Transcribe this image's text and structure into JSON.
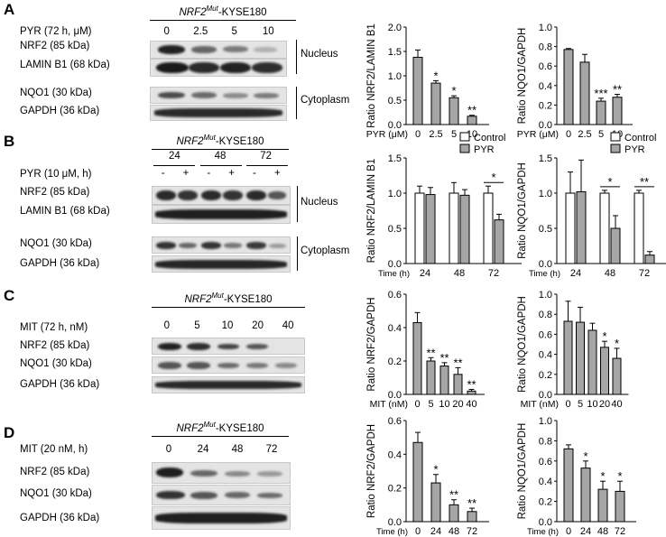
{
  "panels": [
    {
      "letter": "A",
      "title_gene": "NRF2",
      "title_sup": "Mut",
      "title_rest": "-KYSE180",
      "treatment": "PYR (72 h, μM)",
      "lanes": [
        "0",
        "2.5",
        "5",
        "10"
      ],
      "rows": [
        "NRF2 (85 kDa)",
        "LAMIN B1 (68 kDa)",
        "NQO1 (30 kDa)",
        "GAPDH (36 kDa)"
      ],
      "brackets": [
        "Nucleus",
        "Cytoplasm"
      ]
    },
    {
      "letter": "B",
      "title_gene": "NRF2",
      "title_sup": "Mut",
      "title_rest": "-KYSE180",
      "treatment": "PYR (10 μM, h)",
      "groups": [
        "24",
        "48",
        "72"
      ],
      "lanes": [
        "-",
        "+",
        "-",
        "+",
        "-",
        "+"
      ],
      "rows": [
        "NRF2 (85 kDa)",
        "LAMIN B1 (68 kDa)",
        "NQO1 (30 kDa)",
        "GAPDH (36 kDa)"
      ],
      "brackets": [
        "Nucleus",
        "Cytoplasm"
      ]
    },
    {
      "letter": "C",
      "title_gene": "NRF2",
      "title_sup": "Mut",
      "title_rest": "-KYSE180",
      "treatment": "MIT (72 h, nM)",
      "lanes": [
        "0",
        "5",
        "10",
        "20",
        "40"
      ],
      "rows": [
        "NRF2 (85 kDa)",
        "NQO1 (30 kDa)",
        "GAPDH (36 kDa)"
      ]
    },
    {
      "letter": "D",
      "title_gene": "NRF2",
      "title_sup": "Mut",
      "title_rest": "-KYSE180",
      "treatment": "MIT (20 nM, h)",
      "lanes": [
        "0",
        "24",
        "48",
        "72"
      ],
      "rows": [
        "NRF2 (85 kDa)",
        "NQO1 (30 kDa)",
        "GAPDH (36 kDa)"
      ]
    }
  ],
  "chart_data": [
    {
      "id": "A1",
      "type": "bar",
      "xlabel": "PYR (μM)",
      "ylabel": "Ratio NRF2/LAMIN B1",
      "categories": [
        "0",
        "2.5",
        "5",
        "10"
      ],
      "values": [
        1.38,
        0.85,
        0.55,
        0.17
      ],
      "errors": [
        0.15,
        0.05,
        0.04,
        0.02
      ],
      "ylim": [
        0,
        2.0
      ],
      "yticks": [
        "0.0",
        "0.5",
        "1.0",
        "1.5",
        "2.0"
      ],
      "yticks_v": [
        0,
        0.5,
        1.0,
        1.5,
        2.0
      ],
      "sig": [
        "",
        "*",
        "*",
        "**"
      ],
      "bar_color": "#a6a6a6"
    },
    {
      "id": "A2",
      "type": "bar",
      "xlabel": "PYR (μM)",
      "ylabel": "Ratio NQO1/GAPDH",
      "categories": [
        "0",
        "2.5",
        "5",
        "10"
      ],
      "values": [
        0.77,
        0.64,
        0.24,
        0.28
      ],
      "errors": [
        0.01,
        0.08,
        0.03,
        0.03
      ],
      "ylim": [
        0,
        1.0
      ],
      "yticks": [
        "0.0",
        "0.2",
        "0.4",
        "0.6",
        "0.8",
        "1.0"
      ],
      "yticks_v": [
        0,
        0.2,
        0.4,
        0.6,
        0.8,
        1.0
      ],
      "sig": [
        "",
        "",
        "***",
        "**"
      ],
      "bar_color": "#a6a6a6"
    },
    {
      "id": "B1",
      "type": "bar",
      "xlabel": "Time (h)",
      "ylabel": "Ratio NRF2/LAMIN B1",
      "categories": [
        "24",
        "48",
        "72"
      ],
      "series": [
        {
          "name": "Control",
          "values": [
            1.0,
            1.0,
            1.0
          ],
          "errors": [
            0.1,
            0.15,
            0.1
          ],
          "color": "#ffffff"
        },
        {
          "name": "PYR",
          "values": [
            0.98,
            0.97,
            0.62
          ],
          "errors": [
            0.1,
            0.08,
            0.08
          ],
          "color": "#a6a6a6"
        }
      ],
      "ylim": [
        0,
        1.5
      ],
      "yticks": [
        "0.0",
        "0.5",
        "1.0",
        "1.5"
      ],
      "yticks_v": [
        0,
        0.5,
        1.0,
        1.5
      ],
      "sig": [
        "",
        "",
        "*"
      ],
      "legend": "top-right"
    },
    {
      "id": "B2",
      "type": "bar",
      "xlabel": "Time (h)",
      "ylabel": "Ratio NQO1/GAPDH",
      "categories": [
        "24",
        "48",
        "72"
      ],
      "series": [
        {
          "name": "Control",
          "values": [
            1.0,
            1.0,
            1.0
          ],
          "errors": [
            0.3,
            0.04,
            0.04
          ],
          "color": "#ffffff"
        },
        {
          "name": "PYR",
          "values": [
            1.02,
            0.5,
            0.12
          ],
          "errors": [
            0.45,
            0.18,
            0.05
          ],
          "color": "#a6a6a6"
        }
      ],
      "ylim": [
        0,
        1.5
      ],
      "yticks": [
        "0.0",
        "0.5",
        "1.0",
        "1.5"
      ],
      "yticks_v": [
        0,
        0.5,
        1.0,
        1.5
      ],
      "sig": [
        "",
        "*",
        "**"
      ],
      "legend": "top-right"
    },
    {
      "id": "C1",
      "type": "bar",
      "xlabel": "MIT (nM)",
      "ylabel": "Ratio NRF2/GAPDH",
      "categories": [
        "0",
        "5",
        "10",
        "20",
        "40"
      ],
      "values": [
        0.43,
        0.2,
        0.17,
        0.12,
        0.02
      ],
      "errors": [
        0.06,
        0.02,
        0.02,
        0.04,
        0.01
      ],
      "ylim": [
        0,
        0.6
      ],
      "yticks": [
        "0.0",
        "0.2",
        "0.4",
        "0.6"
      ],
      "yticks_v": [
        0,
        0.2,
        0.4,
        0.6
      ],
      "sig": [
        "",
        "**",
        "**",
        "**",
        "**"
      ],
      "bar_color": "#a6a6a6"
    },
    {
      "id": "C2",
      "type": "bar",
      "xlabel": "MIT (nM)",
      "ylabel": "Ratio NQO1/GAPDH",
      "categories": [
        "0",
        "5",
        "10",
        "20",
        "40"
      ],
      "values": [
        0.73,
        0.72,
        0.64,
        0.47,
        0.36
      ],
      "errors": [
        0.2,
        0.15,
        0.07,
        0.06,
        0.1
      ],
      "ylim": [
        0,
        1.0
      ],
      "yticks": [
        "0.0",
        "0.2",
        "0.4",
        "0.6",
        "0.8",
        "1.0"
      ],
      "yticks_v": [
        0,
        0.2,
        0.4,
        0.6,
        0.8,
        1.0
      ],
      "sig": [
        "",
        "",
        "",
        "*",
        "*"
      ],
      "bar_color": "#a6a6a6"
    },
    {
      "id": "D1",
      "type": "bar",
      "xlabel": "Time (h)",
      "ylabel": "Ratio NRF2/GAPDH",
      "categories": [
        "0",
        "24",
        "48",
        "72"
      ],
      "values": [
        0.47,
        0.23,
        0.1,
        0.06
      ],
      "errors": [
        0.06,
        0.05,
        0.03,
        0.02
      ],
      "ylim": [
        0,
        0.6
      ],
      "yticks": [
        "0.0",
        "0.2",
        "0.4",
        "0.6"
      ],
      "yticks_v": [
        0,
        0.2,
        0.4,
        0.6
      ],
      "sig": [
        "",
        "*",
        "**",
        "**"
      ],
      "bar_color": "#a6a6a6"
    },
    {
      "id": "D2",
      "type": "bar",
      "xlabel": "Time (h)",
      "ylabel": "Ratio NQO1/GAPDH",
      "categories": [
        "0",
        "24",
        "48",
        "72"
      ],
      "values": [
        0.72,
        0.53,
        0.32,
        0.3
      ],
      "errors": [
        0.04,
        0.07,
        0.08,
        0.1
      ],
      "ylim": [
        0,
        1.0
      ],
      "yticks": [
        "0.0",
        "0.2",
        "0.4",
        "0.6",
        "0.8",
        "1.0"
      ],
      "yticks_v": [
        0,
        0.2,
        0.4,
        0.6,
        0.8,
        1.0
      ],
      "sig": [
        "",
        "*",
        "*",
        "*"
      ],
      "bar_color": "#a6a6a6"
    }
  ]
}
